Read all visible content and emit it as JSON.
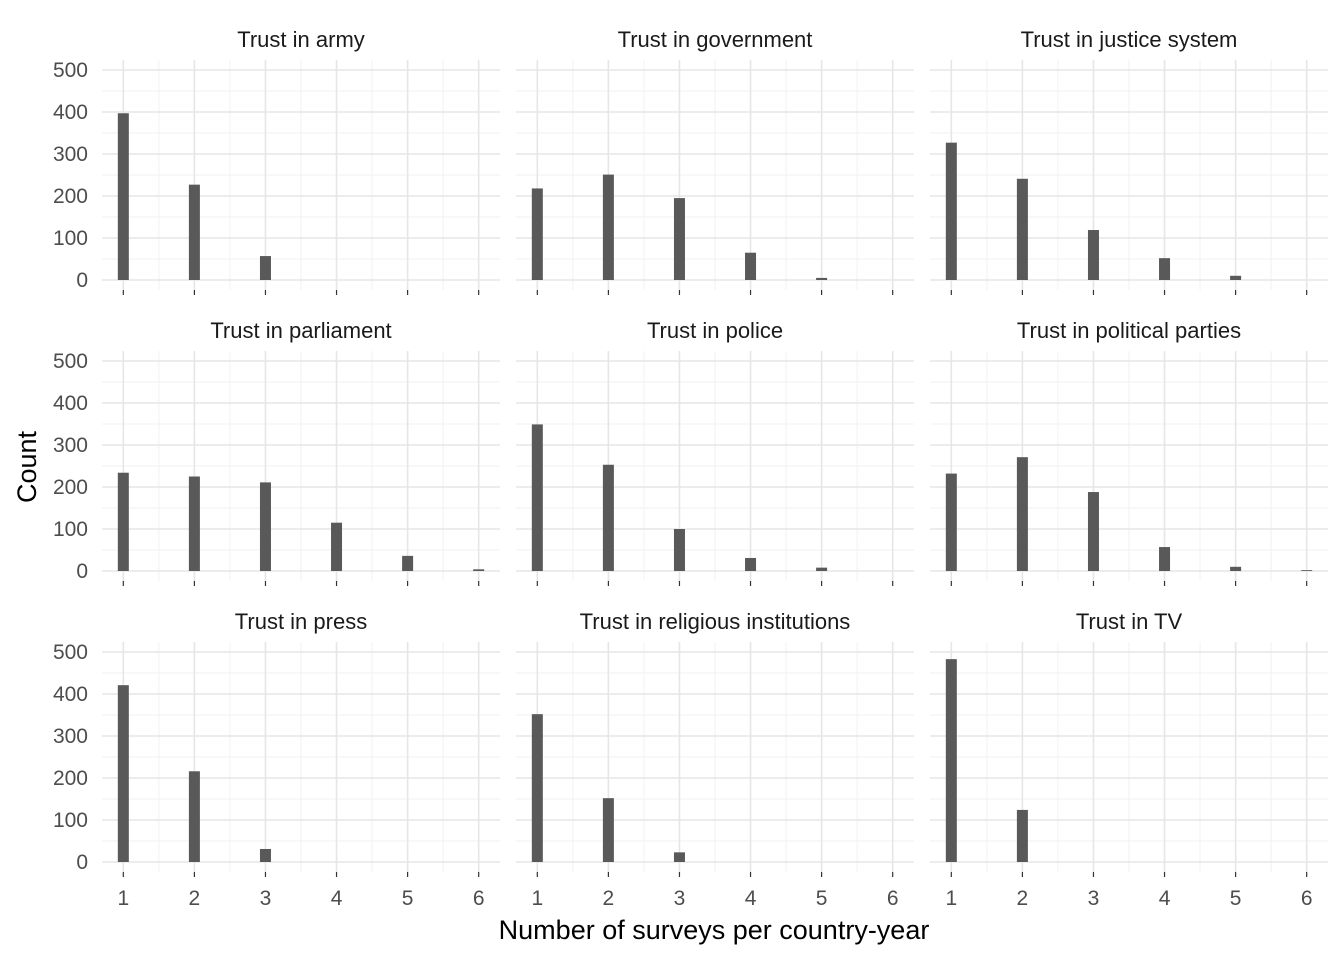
{
  "chart_data": {
    "type": "bar",
    "xlabel": "Number of surveys per country-year",
    "ylabel": "Count",
    "x_ticks": [
      1,
      2,
      3,
      4,
      5,
      6
    ],
    "y_ticks": [
      0,
      100,
      200,
      300,
      400,
      500
    ],
    "xlim": [
      0.7,
      6.3
    ],
    "ylim": [
      0,
      500
    ],
    "bar_color": "#595959",
    "panels": [
      {
        "title": "Trust in army",
        "x": [
          1,
          2,
          3
        ],
        "values": [
          397,
          227,
          57
        ]
      },
      {
        "title": "Trust in government",
        "x": [
          1,
          2,
          3,
          4,
          5
        ],
        "values": [
          218,
          251,
          195,
          65,
          5
        ]
      },
      {
        "title": "Trust in justice system",
        "x": [
          1,
          2,
          3,
          4,
          5
        ],
        "values": [
          327,
          241,
          119,
          52,
          10
        ]
      },
      {
        "title": "Trust in parliament",
        "x": [
          1,
          2,
          3,
          4,
          5,
          6
        ],
        "values": [
          234,
          225,
          211,
          115,
          36,
          4
        ]
      },
      {
        "title": "Trust in police",
        "x": [
          1,
          2,
          3,
          4,
          5
        ],
        "values": [
          349,
          253,
          100,
          31,
          8
        ]
      },
      {
        "title": "Trust in political parties",
        "x": [
          1,
          2,
          3,
          4,
          5,
          6
        ],
        "values": [
          232,
          271,
          188,
          57,
          10,
          2
        ]
      },
      {
        "title": "Trust in press",
        "x": [
          1,
          2,
          3
        ],
        "values": [
          421,
          216,
          31
        ]
      },
      {
        "title": "Trust in religious institutions",
        "x": [
          1,
          2,
          3
        ],
        "values": [
          352,
          152,
          23
        ]
      },
      {
        "title": "Trust in TV",
        "x": [
          1,
          2
        ],
        "values": [
          483,
          124
        ]
      }
    ]
  }
}
